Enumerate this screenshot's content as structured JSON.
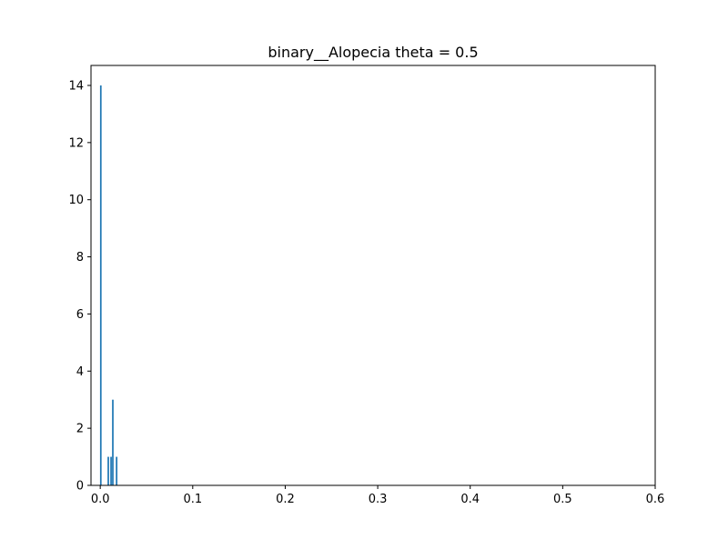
{
  "chart_data": {
    "type": "bar",
    "title": "binary__Alopecia theta = 0.5",
    "xlabel": "",
    "ylabel": "",
    "xlim": [
      -0.01,
      0.6
    ],
    "ylim": [
      0,
      14.7
    ],
    "x_ticks": [
      0.0,
      0.1,
      0.2,
      0.3,
      0.4,
      0.5,
      0.6
    ],
    "x_tick_labels": [
      "0.0",
      "0.1",
      "0.2",
      "0.3",
      "0.4",
      "0.5",
      "0.6"
    ],
    "y_ticks": [
      0,
      2,
      4,
      6,
      8,
      10,
      12,
      14
    ],
    "y_tick_labels": [
      "0",
      "2",
      "4",
      "6",
      "8",
      "10",
      "12",
      "14"
    ],
    "bar_width": 0.0017,
    "x": [
      0.0006,
      0.0087,
      0.0117,
      0.0136,
      0.0177
    ],
    "values": [
      14,
      1,
      1,
      3,
      1
    ],
    "bar_color": "#1f77b4",
    "grid": false,
    "legend": "none"
  }
}
